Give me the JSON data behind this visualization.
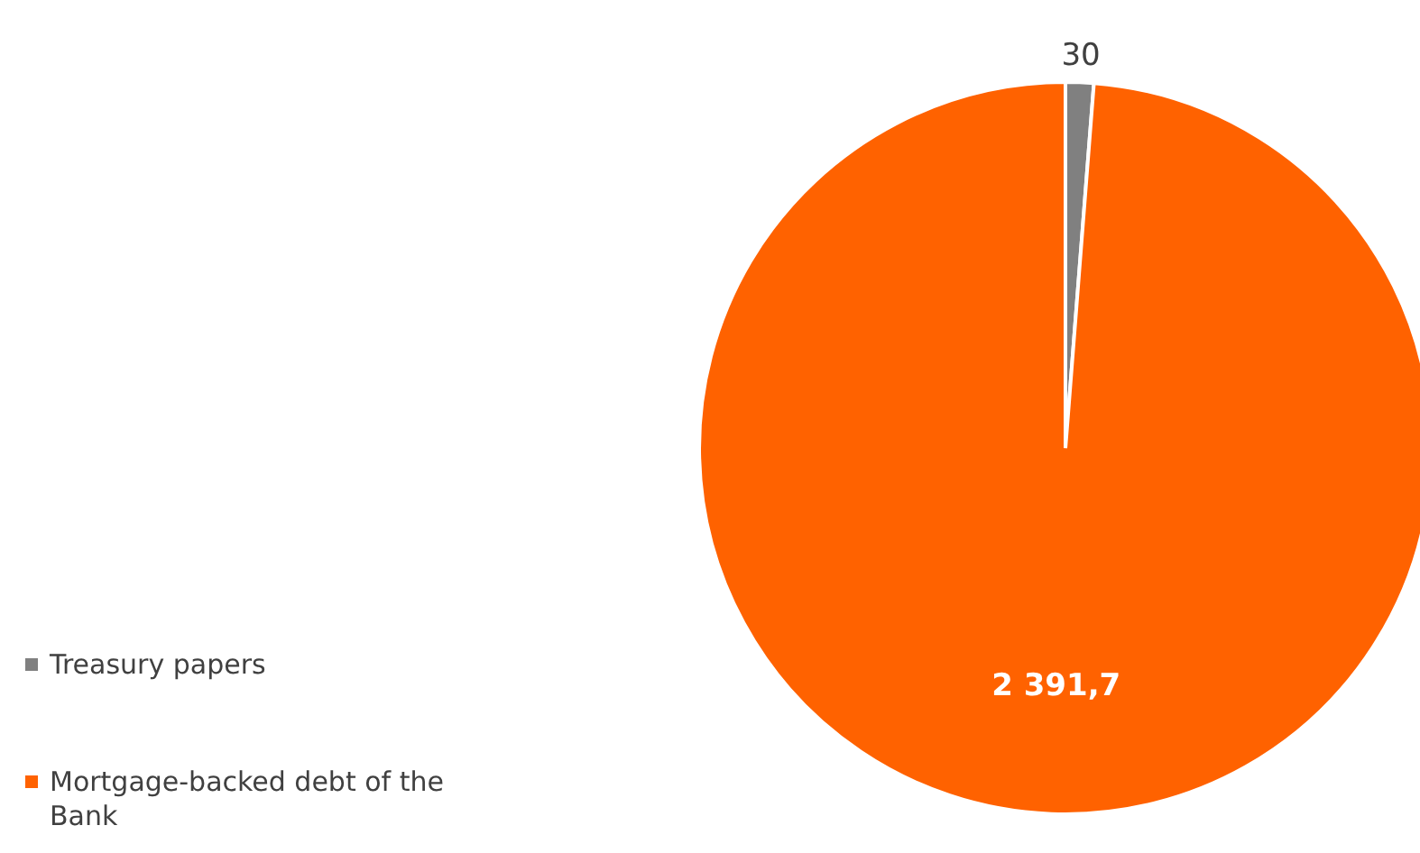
{
  "chart_data": {
    "type": "pie",
    "categories": [
      "Treasury papers",
      "Mortgage-backed debt of the Bank"
    ],
    "values": [
      30,
      2391.7
    ],
    "colors": [
      "#808080",
      "#ff6200"
    ],
    "value_labels": [
      "30",
      "2 391,7"
    ],
    "legend": "bottom left"
  }
}
